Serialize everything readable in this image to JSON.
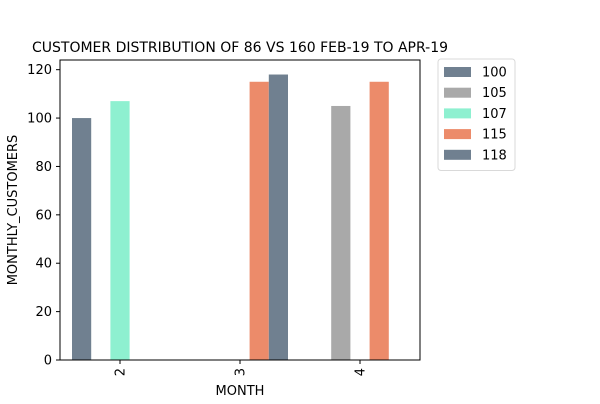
{
  "chart_data": {
    "type": "bar",
    "title": "CUSTOMER DISTRIBUTION OF 86 VS 160 FEB-19 TO APR-19",
    "xlabel": "MONTH",
    "ylabel": "MONTHLY_CUSTOMERS",
    "categories": [
      "2",
      "3",
      "4"
    ],
    "ylim": [
      0,
      124
    ],
    "yticks": [
      "0",
      "20",
      "40",
      "60",
      "80",
      "100",
      "120"
    ],
    "grid": false,
    "legend_position": "outside-top-right",
    "series": [
      {
        "name": "100",
        "color": "#708090",
        "values": [
          100,
          null,
          null
        ]
      },
      {
        "name": "105",
        "color": "#a9a9a9",
        "values": [
          null,
          null,
          105
        ]
      },
      {
        "name": "107",
        "color": "#8ef0d0",
        "values": [
          107,
          null,
          null
        ]
      },
      {
        "name": "115",
        "color": "#ec8b6a",
        "values": [
          null,
          115,
          115
        ]
      },
      {
        "name": "118",
        "color": "#708090",
        "values": [
          null,
          118,
          null
        ]
      }
    ]
  }
}
